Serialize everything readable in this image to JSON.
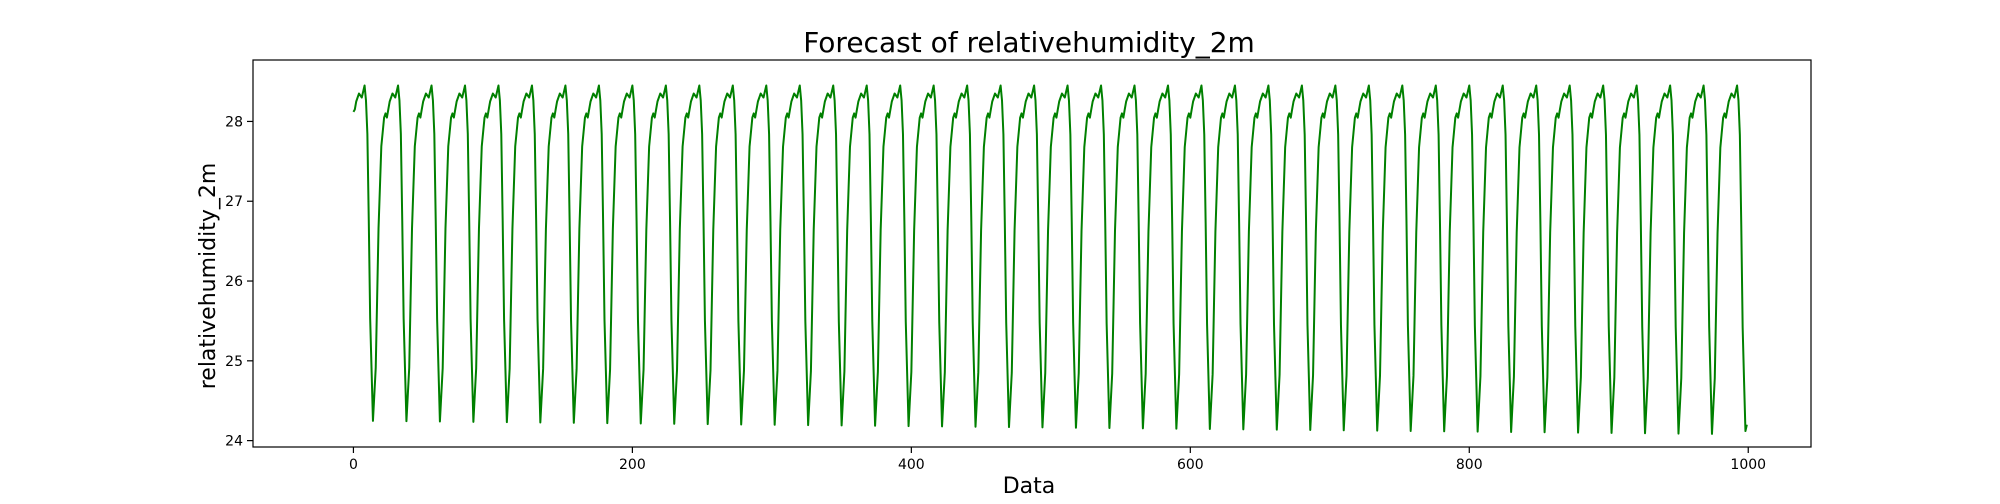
{
  "chart_data": {
    "type": "line",
    "title": "Forecast of relativehumidity_2m",
    "xlabel": "Data",
    "ylabel": "relativehumidity_2m",
    "xlim": [
      -72,
      1045
    ],
    "ylim": [
      23.92,
      28.77
    ],
    "xticks": [
      0,
      200,
      400,
      600,
      800,
      1000
    ],
    "yticks": [
      24,
      25,
      26,
      27,
      28
    ],
    "grid": false,
    "legend": "none",
    "colors": {
      "line": "#008000",
      "axes": "#000000",
      "background": "#ffffff"
    },
    "series": [
      {
        "period": 24,
        "n_points": 1000,
        "waveform": {
          "comment_free": true,
          "t": [
            0,
            2,
            4,
            6,
            8,
            9.5,
            11,
            12,
            14,
            16,
            18,
            20,
            22,
            24
          ],
          "v": [
            28.05,
            28.25,
            28.35,
            28.3,
            28.45,
            28.2,
            26.8,
            25.6,
            24.35,
            25.0,
            26.7,
            27.7,
            28.05,
            28.15
          ]
        },
        "min_start": 24.25,
        "min_end": 24.08,
        "first_value": 28.12,
        "last_value": 24.2
      }
    ]
  }
}
